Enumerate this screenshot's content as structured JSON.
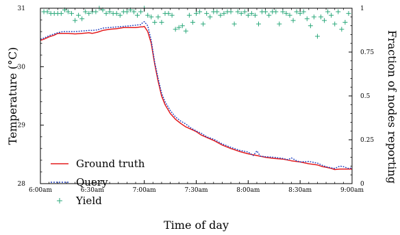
{
  "chart_data": {
    "type": "line",
    "xlabel": "Time of day",
    "ylabel_left": "Temperature (°C)",
    "ylabel_right": "Fraction of nodes reporting",
    "x_range_minutes": [
      0,
      180
    ],
    "ylim_left": [
      28,
      31
    ],
    "ylim_right": [
      0,
      1
    ],
    "x_ticks": [
      {
        "minutes": 0,
        "label": "6:00am"
      },
      {
        "minutes": 30,
        "label": "6:30am"
      },
      {
        "minutes": 60,
        "label": "7:00am"
      },
      {
        "minutes": 90,
        "label": "7:30am"
      },
      {
        "minutes": 120,
        "label": "8:00am"
      },
      {
        "minutes": 150,
        "label": "8:30am"
      },
      {
        "minutes": 180,
        "label": "9:00am"
      }
    ],
    "y_ticks_left": [
      {
        "value": 28,
        "label": "28"
      },
      {
        "value": 29,
        "label": "29"
      },
      {
        "value": 30,
        "label": "30"
      },
      {
        "value": 31,
        "label": "31"
      }
    ],
    "y_ticks_right": [
      {
        "value": 0,
        "label": "0"
      },
      {
        "value": 0.25,
        "label": "0.25"
      },
      {
        "value": 0.5,
        "label": "0.5"
      },
      {
        "value": 0.75,
        "label": "0.75"
      },
      {
        "value": 1,
        "label": "1"
      }
    ],
    "legend_placement": "lower-left",
    "series": [
      {
        "name": "Ground truth",
        "axis": "left",
        "style": "solid",
        "color": "#e41a1c",
        "x": [
          0,
          2,
          5,
          8,
          10,
          13,
          16,
          20,
          24,
          28,
          30,
          33,
          36,
          40,
          44,
          48,
          52,
          55,
          58,
          59,
          60,
          62,
          64,
          66,
          68,
          70,
          72,
          75,
          78,
          81,
          84,
          87,
          90,
          93,
          96,
          100,
          105,
          110,
          115,
          120,
          125,
          130,
          135,
          140,
          145,
          150,
          155,
          160,
          163,
          165,
          168,
          170,
          173,
          175,
          178,
          180
        ],
        "y": [
          30.45,
          30.47,
          30.51,
          30.54,
          30.57,
          30.57,
          30.57,
          30.56,
          30.57,
          30.58,
          30.57,
          30.59,
          30.62,
          30.64,
          30.65,
          30.67,
          30.67,
          30.67,
          30.68,
          30.68,
          30.69,
          30.6,
          30.4,
          30.05,
          29.75,
          29.5,
          29.35,
          29.2,
          29.1,
          29.03,
          28.97,
          28.93,
          28.89,
          28.83,
          28.79,
          28.74,
          28.66,
          28.6,
          28.55,
          28.51,
          28.48,
          28.45,
          28.43,
          28.42,
          28.39,
          28.37,
          28.34,
          28.32,
          28.29,
          28.28,
          28.26,
          28.24,
          28.25,
          28.25,
          28.25,
          28.25
        ]
      },
      {
        "name": "Query",
        "axis": "left",
        "style": "dotted",
        "color": "#1f3fbf",
        "x": [
          0,
          2,
          5,
          8,
          10,
          13,
          16,
          20,
          24,
          28,
          30,
          33,
          36,
          40,
          44,
          48,
          52,
          55,
          58,
          59,
          60,
          62,
          64,
          66,
          68,
          70,
          72,
          75,
          78,
          81,
          84,
          87,
          90,
          93,
          96,
          100,
          105,
          110,
          115,
          120,
          123,
          125,
          127,
          130,
          135,
          140,
          143,
          145,
          148,
          150,
          155,
          160,
          163,
          165,
          168,
          170,
          173,
          175,
          178,
          180
        ],
        "y": [
          30.47,
          30.49,
          30.53,
          30.56,
          30.58,
          30.6,
          30.6,
          30.6,
          30.61,
          30.62,
          30.62,
          30.63,
          30.66,
          30.67,
          30.68,
          30.69,
          30.7,
          30.71,
          30.72,
          30.75,
          30.77,
          30.7,
          30.45,
          30.08,
          29.8,
          29.55,
          29.4,
          29.25,
          29.14,
          29.07,
          29.02,
          28.95,
          28.9,
          28.86,
          28.8,
          28.76,
          28.68,
          28.62,
          28.57,
          28.54,
          28.48,
          28.56,
          28.47,
          28.46,
          28.45,
          28.43,
          28.41,
          28.44,
          28.39,
          28.37,
          28.38,
          28.35,
          28.31,
          28.29,
          28.27,
          28.26,
          28.3,
          28.29,
          28.26,
          28.27
        ]
      },
      {
        "name": "Yield",
        "axis": "right",
        "style": "plus",
        "color": "#2aa87a",
        "x": [
          2,
          4,
          6,
          8,
          10,
          12,
          14,
          16,
          18,
          20,
          22,
          24,
          26,
          28,
          30,
          32,
          34,
          36,
          38,
          40,
          42,
          44,
          46,
          48,
          50,
          52,
          54,
          56,
          58,
          60,
          62,
          64,
          66,
          68,
          70,
          72,
          74,
          76,
          78,
          80,
          82,
          84,
          86,
          88,
          90,
          92,
          94,
          96,
          98,
          100,
          102,
          104,
          106,
          108,
          110,
          112,
          114,
          116,
          118,
          120,
          122,
          124,
          126,
          128,
          130,
          132,
          134,
          136,
          138,
          140,
          142,
          144,
          146,
          148,
          150,
          152,
          154,
          156,
          158,
          160,
          162,
          164,
          166,
          168,
          170,
          172,
          174,
          176,
          178
        ],
        "y": [
          0.98,
          0.98,
          0.97,
          0.97,
          0.97,
          0.97,
          0.99,
          0.98,
          0.97,
          0.93,
          0.96,
          0.94,
          0.98,
          0.97,
          0.98,
          0.98,
          1.0,
          0.99,
          0.97,
          0.98,
          0.97,
          0.97,
          0.96,
          0.98,
          0.98,
          0.99,
          0.98,
          0.96,
          0.98,
          1.0,
          0.96,
          0.95,
          0.92,
          0.95,
          0.92,
          0.97,
          0.97,
          0.96,
          0.88,
          0.89,
          0.9,
          0.87,
          0.96,
          0.92,
          0.97,
          0.98,
          0.91,
          0.97,
          0.95,
          0.98,
          0.98,
          0.96,
          0.97,
          0.98,
          0.98,
          0.91,
          0.98,
          0.97,
          0.98,
          0.96,
          0.97,
          0.96,
          0.91,
          0.98,
          0.98,
          0.96,
          0.98,
          0.98,
          0.91,
          0.98,
          0.97,
          0.96,
          0.93,
          0.98,
          0.97,
          0.98,
          0.94,
          0.9,
          0.95,
          0.84,
          0.95,
          0.93,
          0.98,
          0.96,
          0.91,
          0.98,
          0.88,
          0.92,
          0.97
        ]
      }
    ]
  }
}
